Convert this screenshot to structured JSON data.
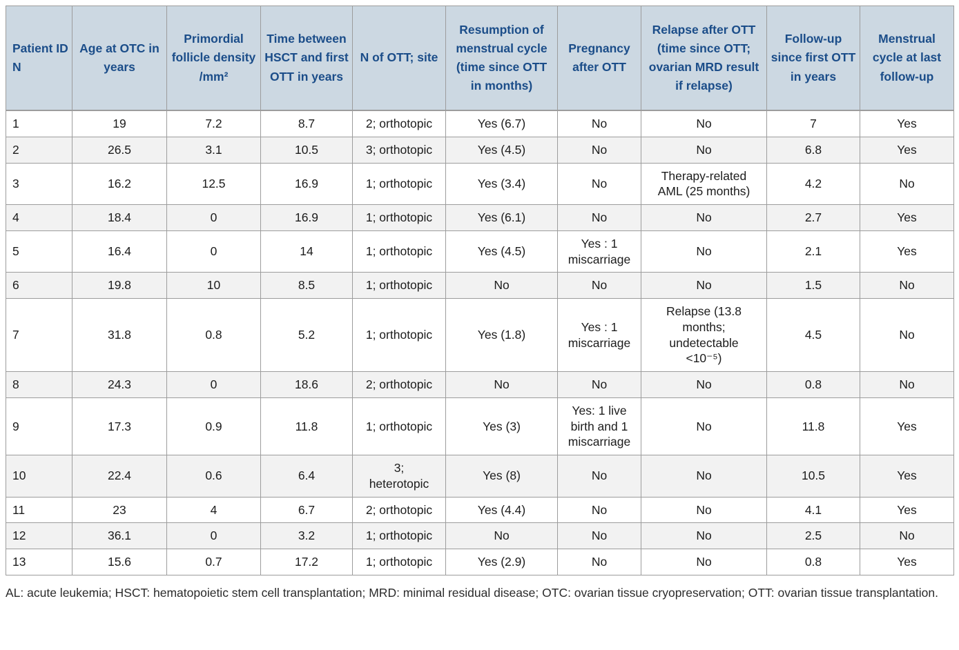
{
  "colors": {
    "header_background": "#ccd8e2",
    "header_text": "#1b4d89",
    "row_stripe": "#f2f2f2",
    "grid_border": "#9c9c9c",
    "body_text": "#1c1c1c"
  },
  "table": {
    "columns": [
      "Patient ID N",
      "Age at OTC in years",
      "Primordial follicle density /mm²",
      "Time between HSCT and first OTT in years",
      "N of OTT; site",
      "Resumption of menstrual cycle (time since OTT in months)",
      "Pregnancy after OTT",
      "Relapse after OTT (time since OTT; ovarian MRD result if relapse)",
      "Follow-up since first OTT in years",
      "Menstrual cycle at last follow-up"
    ],
    "rows": [
      [
        "1",
        "19",
        "7.2",
        "8.7",
        "2; orthotopic",
        "Yes (6.7)",
        "No",
        "No",
        "7",
        "Yes"
      ],
      [
        "2",
        "26.5",
        "3.1",
        "10.5",
        "3; orthotopic",
        "Yes (4.5)",
        "No",
        "No",
        "6.8",
        "Yes"
      ],
      [
        "3",
        "16.2",
        "12.5",
        "16.9",
        "1; orthotopic",
        "Yes (3.4)",
        "No",
        "Therapy-related\nAML (25 months)",
        "4.2",
        "No"
      ],
      [
        "4",
        "18.4",
        "0",
        "16.9",
        "1; orthotopic",
        "Yes (6.1)",
        "No",
        "No",
        "2.7",
        "Yes"
      ],
      [
        "5",
        "16.4",
        "0",
        "14",
        "1; orthotopic",
        "Yes (4.5)",
        "Yes : 1\nmiscarriage",
        "No",
        "2.1",
        "Yes"
      ],
      [
        "6",
        "19.8",
        "10",
        "8.5",
        "1; orthotopic",
        "No",
        "No",
        "No",
        "1.5",
        "No"
      ],
      [
        "7",
        "31.8",
        "0.8",
        "5.2",
        "1; orthotopic",
        "Yes (1.8)",
        "Yes : 1\nmiscarriage",
        "Relapse (13.8\nmonths;\nundetectable\n<10⁻⁵)",
        "4.5",
        "No"
      ],
      [
        "8",
        "24.3",
        "0",
        "18.6",
        "2; orthotopic",
        "No",
        "No",
        "No",
        "0.8",
        "No"
      ],
      [
        "9",
        "17.3",
        "0.9",
        "11.8",
        "1; orthotopic",
        "Yes (3)",
        "Yes: 1 live\nbirth and 1\nmiscarriage",
        "No",
        "11.8",
        "Yes"
      ],
      [
        "10",
        "22.4",
        "0.6",
        "6.4",
        "3;\nheterotopic",
        "Yes (8)",
        "No",
        "No",
        "10.5",
        "Yes"
      ],
      [
        "11",
        "23",
        "4",
        "6.7",
        "2; orthotopic",
        "Yes (4.4)",
        "No",
        "No",
        "4.1",
        "Yes"
      ],
      [
        "12",
        "36.1",
        "0",
        "3.2",
        "1; orthotopic",
        "No",
        "No",
        "No",
        "2.5",
        "No"
      ],
      [
        "13",
        "15.6",
        "0.7",
        "17.2",
        "1; orthotopic",
        "Yes (2.9)",
        "No",
        "No",
        "0.8",
        "Yes"
      ]
    ]
  },
  "footnote": "AL: acute leukemia; HSCT: hematopoietic stem cell transplantation; MRD: minimal residual disease; OTC: ovarian tissue cryopreservation; OTT: ovarian tissue transplantation."
}
